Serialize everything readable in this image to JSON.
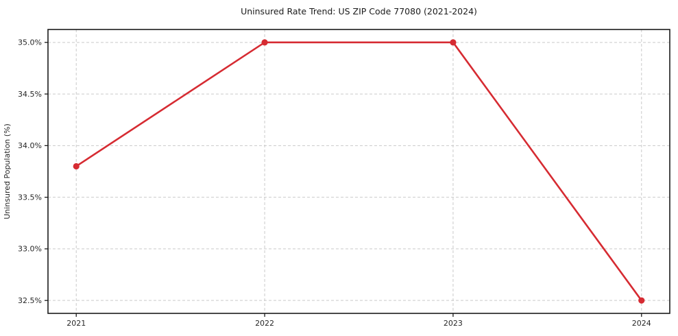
{
  "chart_data": {
    "type": "line",
    "title": "Uninsured Rate Trend: US ZIP Code 77080 (2021-2024)",
    "xlabel": "",
    "ylabel": "Uninsured Population (%)",
    "x": [
      2021,
      2022,
      2023,
      2024
    ],
    "x_tick_labels": [
      "2021",
      "2022",
      "2023",
      "2024"
    ],
    "values": [
      33.8,
      35.0,
      35.0,
      32.5
    ],
    "y_ticks": [
      32.5,
      33.0,
      33.5,
      34.0,
      34.5,
      35.0
    ],
    "y_tick_labels": [
      "32.5%",
      "33.0%",
      "33.5%",
      "34.0%",
      "34.5%",
      "35.0%"
    ],
    "xlim": [
      2020.85,
      2024.15
    ],
    "ylim": [
      32.375,
      35.125
    ],
    "grid": true,
    "grid_style": "dashed",
    "legend": "none",
    "marker": "circle",
    "colors": {
      "line": "#d62b32",
      "grid": "#c9c9c9",
      "axis": "#1a1a1a",
      "tick_text": "#262626",
      "background": "#ffffff"
    }
  }
}
